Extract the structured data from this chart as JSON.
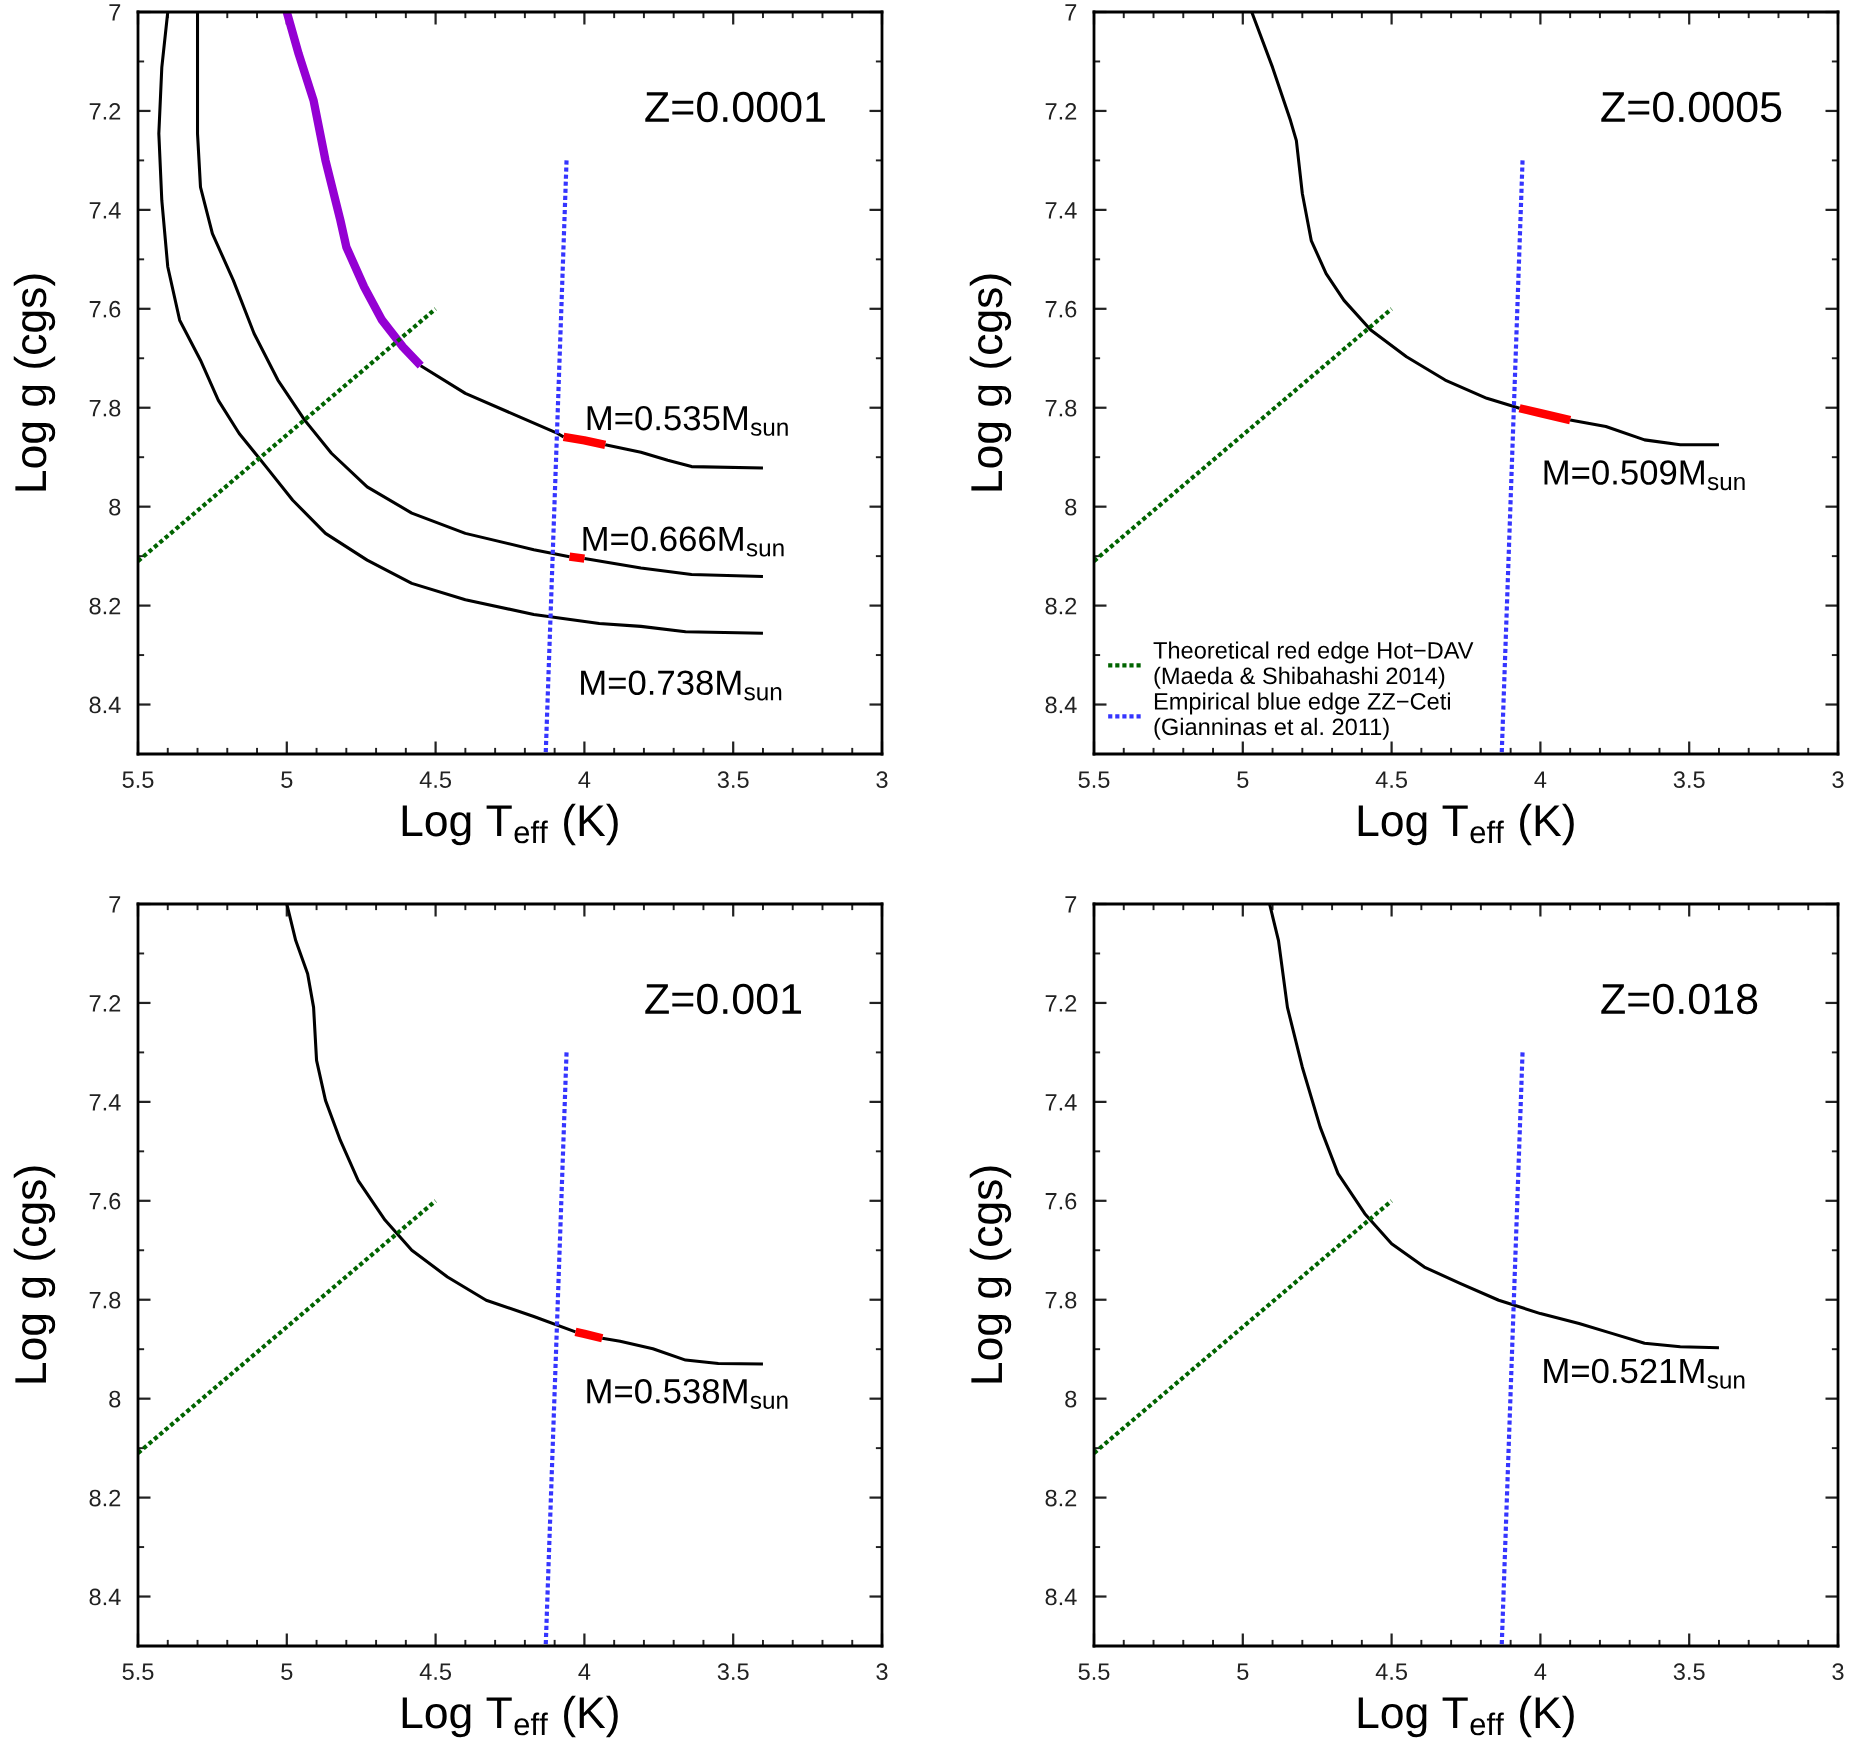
{
  "chart_data": [
    {
      "type": "line",
      "title": "Z=0.0001",
      "xlabel": "Log T$_{eff}$ (K)",
      "ylabel": "Log g (cgs)",
      "xlim": [
        5.5,
        3
      ],
      "ylim": [
        8.5,
        7
      ],
      "grid": false,
      "legend": false,
      "xticks": [
        5.5,
        {
          "value": 5.4,
          "label": null
        },
        {
          "value": 5.3,
          "label": null
        },
        {
          "value": 5.2,
          "label": null
        },
        {
          "value": 5.1,
          "label": null
        },
        5,
        {
          "value": 4.9,
          "label": null
        },
        {
          "value": 4.8,
          "label": null
        },
        {
          "value": 4.7,
          "label": null
        },
        {
          "value": 4.6,
          "label": null
        },
        4.5,
        {
          "value": 4.4,
          "label": null
        },
        {
          "value": 4.3,
          "label": null
        },
        {
          "value": 4.2,
          "label": null
        },
        {
          "value": 4.1,
          "label": null
        },
        4,
        {
          "value": 3.9,
          "label": null
        },
        {
          "value": 3.8,
          "label": null
        },
        {
          "value": 3.7,
          "label": null
        },
        {
          "value": 3.6,
          "label": null
        },
        3.5,
        {
          "value": 3.4,
          "label": null
        },
        {
          "value": 3.3,
          "label": null
        },
        {
          "value": 3.2,
          "label": null
        },
        {
          "value": 3.1,
          "label": null
        },
        3
      ],
      "yticks": [
        7,
        {
          "value": 7.1,
          "label": null
        },
        7.2,
        {
          "value": 7.3,
          "label": null
        },
        7.4,
        {
          "value": 7.5,
          "label": null
        },
        7.6,
        {
          "value": 7.7,
          "label": null
        },
        7.8,
        {
          "value": 7.9,
          "label": null
        },
        8,
        {
          "value": 8.1,
          "label": null
        },
        8.2,
        {
          "value": 8.3,
          "label": null
        },
        8.4
      ],
      "series": [
        {
          "color": "#000000",
          "x": [
            5.4,
            5.42,
            5.43,
            5.42,
            5.4,
            5.36,
            5.29,
            5.23,
            5.16,
            5.07,
            4.98,
            4.87,
            4.73,
            4.58,
            4.4,
            4.17,
            3.95,
            3.81,
            3.66,
            3.4
          ],
          "values": [
            7.0,
            7.112,
            7.246,
            7.381,
            7.515,
            7.623,
            7.704,
            7.785,
            7.852,
            7.919,
            7.987,
            8.054,
            8.108,
            8.155,
            8.188,
            8.218,
            8.236,
            8.242,
            8.253,
            8.256
          ]
        },
        {
          "color": "#000000",
          "x": [
            5.3,
            5.3,
            5.29,
            5.25,
            5.18,
            5.11,
            5.03,
            4.94,
            4.85,
            4.73,
            4.58,
            4.4,
            4.17,
            4.05,
            4.03,
            4.0,
            3.81,
            3.64,
            3.4
          ],
          "values": [
            7.0,
            7.246,
            7.354,
            7.448,
            7.542,
            7.65,
            7.744,
            7.825,
            7.892,
            7.96,
            8.013,
            8.054,
            8.087,
            8.101,
            null,
            8.105,
            8.124,
            8.137,
            8.141
          ]
        },
        {
          "color": "#000000",
          "x": [
            4.55,
            4.4,
            4.22,
            4.09,
            4.07,
            4.0,
            3.93,
            3.81,
            3.72,
            3.64,
            3.4
          ],
          "values": [
            7.715,
            7.771,
            7.818,
            7.852,
            7.859,
            null,
            7.875,
            7.89,
            7.906,
            7.919,
            7.922
          ]
        },
        {
          "color": "#9400d3",
          "x": [
            5.0,
            4.96,
            4.91,
            4.87,
            4.82,
            4.8,
            4.74,
            4.68,
            4.61,
            4.55
          ],
          "values": [
            7.0,
            7.085,
            7.179,
            7.3,
            7.421,
            7.475,
            7.556,
            7.623,
            7.677,
            7.715
          ]
        },
        {
          "color": "#ff0000",
          "x": [
            4.07,
            4.0,
            3.93
          ],
          "values": [
            7.859,
            7.866,
            7.875
          ]
        },
        {
          "color": "#ff0000",
          "x": [
            4.05,
            4.0
          ],
          "values": [
            8.101,
            8.105
          ]
        },
        {
          "color": "#006400",
          "line_style": "dotted",
          "x": [
            5.5,
            4.5
          ],
          "values": [
            8.11,
            7.6
          ]
        },
        {
          "color": "#3535ff",
          "line_style": "dotted",
          "x": [
            4.06,
            4.13
          ],
          "values": [
            7.3,
            8.5
          ]
        }
      ],
      "annotations": [
        {
          "text": "M=0.535M$_{sun}$",
          "x": 4.092,
          "y": 7.851
        },
        {
          "text": "M=0.666M$_{sun}$",
          "x": 4.106,
          "y": 8.095
        },
        {
          "text": "M=0.738M$_{sun}$",
          "x": 4.114,
          "y": 8.223
        }
      ]
    },
    {
      "type": "line",
      "title": "Z=0.0005",
      "xlabel": "Log T$_{eff}$ (K)",
      "ylabel": "Log g (cgs)",
      "xlim": [
        5.5,
        3
      ],
      "ylim": [
        8.5,
        7
      ],
      "grid": false,
      "legend": "bottom left",
      "xticks": [
        5.5,
        {
          "value": 5.4,
          "label": null
        },
        {
          "value": 5.3,
          "label": null
        },
        {
          "value": 5.2,
          "label": null
        },
        {
          "value": 5.1,
          "label": null
        },
        5,
        {
          "value": 4.9,
          "label": null
        },
        {
          "value": 4.8,
          "label": null
        },
        {
          "value": 4.7,
          "label": null
        },
        {
          "value": 4.6,
          "label": null
        },
        4.5,
        {
          "value": 4.4,
          "label": null
        },
        {
          "value": 4.3,
          "label": null
        },
        {
          "value": 4.2,
          "label": null
        },
        {
          "value": 4.1,
          "label": null
        },
        4,
        {
          "value": 3.9,
          "label": null
        },
        {
          "value": 3.8,
          "label": null
        },
        {
          "value": 3.7,
          "label": null
        },
        {
          "value": 3.6,
          "label": null
        },
        3.5,
        {
          "value": 3.4,
          "label": null
        },
        {
          "value": 3.3,
          "label": null
        },
        {
          "value": 3.2,
          "label": null
        },
        {
          "value": 3.1,
          "label": null
        },
        3
      ],
      "yticks": [
        7,
        {
          "value": 7.1,
          "label": null
        },
        7.2,
        {
          "value": 7.3,
          "label": null
        },
        7.4,
        {
          "value": 7.5,
          "label": null
        },
        7.6,
        {
          "value": 7.7,
          "label": null
        },
        7.8,
        {
          "value": 7.9,
          "label": null
        },
        8,
        {
          "value": 8.1,
          "label": null
        },
        8.2,
        {
          "value": 8.3,
          "label": null
        },
        8.4
      ],
      "series": [
        {
          "color": "#000000",
          "x": [
            4.97,
            4.9,
            4.84,
            4.82,
            4.8,
            4.77,
            4.72,
            4.66,
            4.57,
            4.45,
            4.32,
            4.18,
            4.07,
            4.0,
            3.9,
            3.78,
            3.65,
            3.53,
            3.4
          ],
          "values": [
            7.0,
            7.112,
            7.219,
            7.26,
            7.367,
            7.462,
            7.529,
            7.583,
            7.643,
            7.697,
            7.744,
            7.781,
            7.801,
            null,
            7.825,
            7.838,
            7.865,
            7.875,
            7.875
          ]
        },
        {
          "color": "#ff0000",
          "x": [
            4.07,
            4.0,
            3.9
          ],
          "values": [
            7.801,
            7.811,
            7.825
          ]
        },
        {
          "name": "Theoretical red edge Hot−DAV\n(Maeda & Shibahashi 2014)",
          "color": "#006400",
          "line_style": "dotted",
          "x": [
            5.5,
            4.5
          ],
          "values": [
            8.11,
            7.6
          ]
        },
        {
          "name": "Empirical blue edge ZZ−Ceti\n(Gianninas et al. 2011)",
          "color": "#3535ff",
          "line_style": "dotted",
          "x": [
            4.06,
            4.13
          ],
          "values": [
            7.3,
            8.5
          ]
        }
      ],
      "annotations": [
        {
          "text": "M=0.509M$_{sun}$",
          "x": 4.089,
          "y": 7.798
        }
      ]
    },
    {
      "type": "line",
      "title": "Z=0.001",
      "xlabel": "Log T$_{eff}$ (K)",
      "ylabel": "Log g (cgs)",
      "xlim": [
        5.5,
        3
      ],
      "ylim": [
        8.5,
        7
      ],
      "grid": false,
      "legend": false,
      "xticks": [
        5.5,
        {
          "value": 5.4,
          "label": null
        },
        {
          "value": 5.3,
          "label": null
        },
        {
          "value": 5.2,
          "label": null
        },
        {
          "value": 5.1,
          "label": null
        },
        5,
        {
          "value": 4.9,
          "label": null
        },
        {
          "value": 4.8,
          "label": null
        },
        {
          "value": 4.7,
          "label": null
        },
        {
          "value": 4.6,
          "label": null
        },
        4.5,
        {
          "value": 4.4,
          "label": null
        },
        {
          "value": 4.3,
          "label": null
        },
        {
          "value": 4.2,
          "label": null
        },
        {
          "value": 4.1,
          "label": null
        },
        4,
        {
          "value": 3.9,
          "label": null
        },
        {
          "value": 3.8,
          "label": null
        },
        {
          "value": 3.7,
          "label": null
        },
        {
          "value": 3.6,
          "label": null
        },
        3.5,
        {
          "value": 3.4,
          "label": null
        },
        {
          "value": 3.3,
          "label": null
        },
        {
          "value": 3.2,
          "label": null
        },
        {
          "value": 3.1,
          "label": null
        },
        3
      ],
      "yticks": [
        7,
        {
          "value": 7.1,
          "label": null
        },
        7.2,
        {
          "value": 7.3,
          "label": null
        },
        7.4,
        {
          "value": 7.5,
          "label": null
        },
        7.6,
        {
          "value": 7.7,
          "label": null
        },
        7.8,
        {
          "value": 7.9,
          "label": null
        },
        8,
        {
          "value": 8.1,
          "label": null
        },
        8.2,
        {
          "value": 8.3,
          "label": null
        },
        8.4
      ],
      "series": [
        {
          "color": "#000000",
          "x": [
            5.0,
            4.97,
            4.93,
            4.91,
            4.9,
            4.87,
            4.82,
            4.76,
            4.67,
            4.58,
            4.46,
            4.33,
            4.17,
            4.03,
            3.98,
            3.94,
            3.88,
            3.77,
            3.66,
            3.55,
            3.4
          ],
          "values": [
            7.0,
            7.074,
            7.141,
            7.209,
            7.316,
            7.397,
            7.478,
            7.559,
            7.639,
            7.7,
            7.754,
            7.801,
            7.834,
            7.865,
            null,
            7.878,
            7.884,
            7.899,
            7.922,
            7.929,
            7.93
          ]
        },
        {
          "color": "#ff0000",
          "x": [
            4.03,
            4.0,
            3.94
          ],
          "values": [
            7.865,
            7.869,
            7.878
          ]
        },
        {
          "color": "#006400",
          "line_style": "dotted",
          "x": [
            5.5,
            4.5
          ],
          "values": [
            8.11,
            7.6
          ]
        },
        {
          "color": "#3535ff",
          "line_style": "dotted",
          "x": [
            4.06,
            4.13
          ],
          "values": [
            7.3,
            8.5
          ]
        }
      ],
      "annotations": [
        {
          "text": "M=0.538M$_{sun}$",
          "x": 4.093,
          "y": 7.852
        }
      ]
    },
    {
      "type": "line",
      "title": "Z=0.018",
      "xlabel": "Log T$_{eff}$ (K)",
      "ylabel": "Log g (cgs)",
      "xlim": [
        5.5,
        3
      ],
      "ylim": [
        8.5,
        7
      ],
      "grid": false,
      "legend": false,
      "xticks": [
        5.5,
        {
          "value": 5.4,
          "label": null
        },
        {
          "value": 5.3,
          "label": null
        },
        {
          "value": 5.2,
          "label": null
        },
        {
          "value": 5.1,
          "label": null
        },
        5,
        {
          "value": 4.9,
          "label": null
        },
        {
          "value": 4.8,
          "label": null
        },
        {
          "value": 4.7,
          "label": null
        },
        {
          "value": 4.6,
          "label": null
        },
        4.5,
        {
          "value": 4.4,
          "label": null
        },
        {
          "value": 4.3,
          "label": null
        },
        {
          "value": 4.2,
          "label": null
        },
        {
          "value": 4.1,
          "label": null
        },
        4,
        {
          "value": 3.9,
          "label": null
        },
        {
          "value": 3.8,
          "label": null
        },
        {
          "value": 3.7,
          "label": null
        },
        {
          "value": 3.6,
          "label": null
        },
        3.5,
        {
          "value": 3.4,
          "label": null
        },
        {
          "value": 3.3,
          "label": null
        },
        {
          "value": 3.2,
          "label": null
        },
        {
          "value": 3.1,
          "label": null
        },
        3
      ],
      "yticks": [
        7,
        {
          "value": 7.1,
          "label": null
        },
        7.2,
        {
          "value": 7.3,
          "label": null
        },
        7.4,
        {
          "value": 7.5,
          "label": null
        },
        7.6,
        {
          "value": 7.7,
          "label": null
        },
        7.8,
        {
          "value": 7.9,
          "label": null
        },
        8,
        {
          "value": 8.1,
          "label": null
        },
        8.2,
        {
          "value": 8.3,
          "label": null
        },
        8.4
      ],
      "series": [
        {
          "color": "#000000",
          "x": [
            4.91,
            4.88,
            4.85,
            4.8,
            4.74,
            4.68,
            4.59,
            4.5,
            4.39,
            4.27,
            4.14,
            4.0,
            3.87,
            3.76,
            3.65,
            3.53,
            3.4
          ],
          "values": [
            7.0,
            7.074,
            7.209,
            7.33,
            7.451,
            7.545,
            7.626,
            7.687,
            7.734,
            7.767,
            7.801,
            7.828,
            7.848,
            7.868,
            7.888,
            7.895,
            7.897
          ]
        },
        {
          "color": "#006400",
          "line_style": "dotted",
          "x": [
            5.5,
            4.5
          ],
          "values": [
            8.11,
            7.6
          ]
        },
        {
          "color": "#3535ff",
          "line_style": "dotted",
          "x": [
            4.06,
            4.13
          ],
          "values": [
            7.3,
            8.5
          ]
        }
      ],
      "annotations": [
        {
          "text": "M=0.521M$_{sun}$",
          "x": 4.09,
          "y": 7.811
        }
      ]
    }
  ]
}
